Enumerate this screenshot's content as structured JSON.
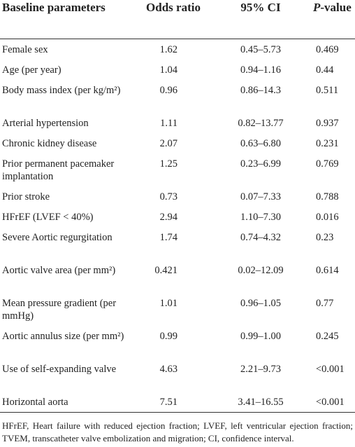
{
  "table": {
    "header": [
      "Baseline parameters",
      "Odds ratio",
      "95% CI",
      {
        "italic": "P",
        "text": "-value"
      }
    ],
    "rows": [
      [
        "Female sex",
        "1.62",
        "0.45–5.73",
        "0.469"
      ],
      [
        "Age (per year)",
        "1.04",
        "0.94–1.16",
        "0.44"
      ],
      [
        "Body mass index (per kg/m²)",
        "0.96",
        "0.86–14.3",
        "0.511"
      ],
      [
        "Arterial hypertension",
        "1.11",
        "0.82–13.77",
        "0.937"
      ],
      [
        "Chronic kidney disease",
        "2.07",
        "0.63–6.80",
        "0.231"
      ],
      [
        "Prior permanent pacemaker implantation",
        "1.25",
        "0.23–6.99",
        "0.769"
      ],
      [
        "Prior stroke",
        "0.73",
        "0.07–7.33",
        "0.788"
      ],
      [
        "HFrEF (LVEF < 40%)",
        "2.94",
        "1.10–7.30",
        "0.016"
      ],
      [
        "Severe Aortic regurgitation",
        "1.74",
        "0.74–4.32",
        "0.23"
      ],
      [
        "Aortic valve area (per mm²)",
        "0.421",
        "0.02–12.09",
        "0.614"
      ],
      [
        "Mean pressure gradient (per mmHg)",
        "1.01",
        "0.96–1.05",
        "0.77"
      ],
      [
        "Aortic annulus size (per mm²)",
        "0.99",
        "0.99–1.00",
        "0.245"
      ],
      [
        "Use of self-expanding valve",
        "4.63",
        "2.21–9.73",
        "<0.001"
      ],
      [
        "Horizontal aorta",
        "7.51",
        "3.41–16.55",
        "<0.001"
      ]
    ],
    "footnote": "HFrEF, Heart failure with reduced ejection fraction; LVEF, left ventricular ejection fraction; TVEM, transcatheter valve embolization and migration; CI, confidence interval."
  }
}
